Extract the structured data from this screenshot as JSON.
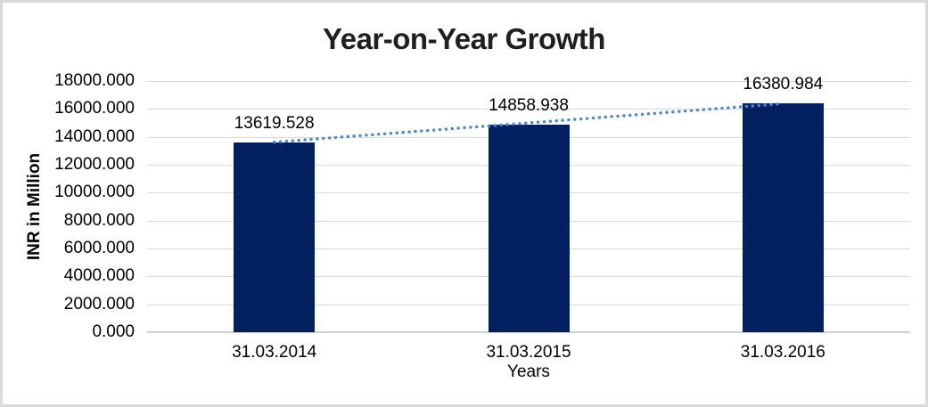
{
  "chart_data": {
    "type": "bar",
    "title": "Year-on-Year Growth",
    "categories": [
      "31.03.2014",
      "31.03.2015",
      "31.03.2016"
    ],
    "values": [
      13619.528,
      14858.938,
      16380.984
    ],
    "data_labels": [
      "13619.528",
      "14858.938",
      "16380.984"
    ],
    "xlabel": "Years",
    "ylabel": "INR in Million",
    "ylim": [
      0,
      18000
    ],
    "ytick_step": 2000,
    "ytick_decimals": 3,
    "grid": "horizontal",
    "legend": "none",
    "trendline": {
      "style": "dotted",
      "from_value": 13619.528,
      "to_value": 16380.984
    }
  },
  "colors": {
    "bar": "#022060",
    "trendline": "#4a86d8",
    "gridline": "#d9d9d9",
    "axis_line": "#cfcfcf",
    "frame_border": "#d9d9d9",
    "title_text": "#1f1f1f",
    "label_text": "#000000"
  }
}
